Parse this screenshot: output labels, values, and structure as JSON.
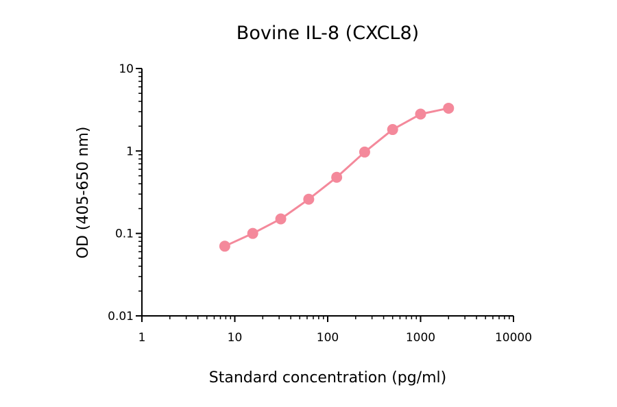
{
  "chart_data": {
    "type": "line",
    "title": "Bovine IL-8 (CXCL8)",
    "xlabel": "Standard concentration (pg/ml)",
    "ylabel": "OD (405-650 nm)",
    "x_scale": "log",
    "y_scale": "log",
    "xlim": [
      1,
      10000
    ],
    "ylim": [
      0.01,
      10
    ],
    "x_ticks": [
      1,
      10,
      100,
      1000,
      10000
    ],
    "x_tick_labels": [
      "1",
      "10",
      "100",
      "1000",
      "10000"
    ],
    "y_ticks": [
      0.01,
      0.1,
      1,
      10
    ],
    "y_tick_labels": [
      "0.01",
      "0.1",
      "1",
      "10"
    ],
    "grid": false,
    "series": [
      {
        "x": [
          7.8,
          15.6,
          31.25,
          62.5,
          125,
          250,
          500,
          1000,
          2000
        ],
        "y": [
          0.07,
          0.1,
          0.15,
          0.26,
          0.48,
          0.97,
          1.82,
          2.8,
          3.3
        ],
        "color": "#f4899b",
        "marker": "circle"
      }
    ]
  }
}
